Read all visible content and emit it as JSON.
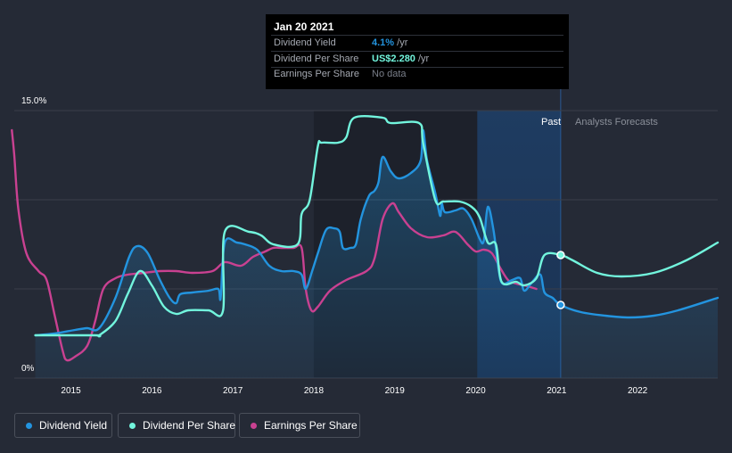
{
  "tooltip": {
    "date": "Jan 20 2021",
    "rows": [
      {
        "label": "Dividend Yield",
        "value": "4.1%",
        "unit": " /yr",
        "color": "#2394df"
      },
      {
        "label": "Dividend Per Share",
        "value": "US$2.280",
        "unit": " /yr",
        "color": "#72f5dd"
      },
      {
        "label": "Earnings Per Share",
        "value": "No data",
        "unit": "",
        "color": "#7a7f8a"
      }
    ]
  },
  "legend": [
    {
      "label": "Dividend Yield",
      "color": "#2394df"
    },
    {
      "label": "Dividend Per Share",
      "color": "#72f5dd"
    },
    {
      "label": "Earnings Per Share",
      "color": "#c94191"
    }
  ],
  "chart_data": {
    "type": "line",
    "y_tick_labels": [
      "15.0%",
      "0%"
    ],
    "ylim": [
      0,
      15
    ],
    "x_ticks": [
      2015,
      2016,
      2017,
      2018,
      2019,
      2020,
      2021,
      2022
    ],
    "xlim": [
      2014.3,
      2022.99
    ],
    "region_labels": {
      "past": "Past",
      "forecast": "Analysts Forecasts"
    },
    "past_shade_start": 2020.02,
    "forecast_start": 2021.05,
    "series": [
      {
        "name": "Dividend Yield",
        "color": "#2394df",
        "axis": "percent",
        "points": [
          [
            2014.56,
            2.4
          ],
          [
            2014.8,
            2.5
          ],
          [
            2015.05,
            2.7
          ],
          [
            2015.2,
            2.8
          ],
          [
            2015.35,
            2.8
          ],
          [
            2015.55,
            4.5
          ],
          [
            2015.72,
            6.8
          ],
          [
            2015.82,
            7.4
          ],
          [
            2015.95,
            7.0
          ],
          [
            2016.1,
            5.5
          ],
          [
            2016.22,
            4.5
          ],
          [
            2016.3,
            4.2
          ],
          [
            2016.35,
            4.7
          ],
          [
            2016.5,
            4.8
          ],
          [
            2016.7,
            4.9
          ],
          [
            2016.82,
            5.0
          ],
          [
            2016.85,
            4.5
          ],
          [
            2016.9,
            7.6
          ],
          [
            2017.05,
            7.6
          ],
          [
            2017.15,
            7.5
          ],
          [
            2017.3,
            7.2
          ],
          [
            2017.45,
            6.3
          ],
          [
            2017.6,
            6.0
          ],
          [
            2017.75,
            6.0
          ],
          [
            2017.85,
            5.8
          ],
          [
            2017.9,
            5.0
          ],
          [
            2017.98,
            6.0
          ],
          [
            2018.05,
            7.0
          ],
          [
            2018.15,
            8.3
          ],
          [
            2018.25,
            8.4
          ],
          [
            2018.32,
            8.2
          ],
          [
            2018.36,
            7.3
          ],
          [
            2018.45,
            7.3
          ],
          [
            2018.52,
            7.5
          ],
          [
            2018.58,
            8.9
          ],
          [
            2018.68,
            10.2
          ],
          [
            2018.75,
            10.5
          ],
          [
            2018.8,
            11.0
          ],
          [
            2018.85,
            12.4
          ],
          [
            2018.95,
            11.6
          ],
          [
            2019.05,
            11.2
          ],
          [
            2019.2,
            11.5
          ],
          [
            2019.32,
            12.2
          ],
          [
            2019.35,
            13.9
          ],
          [
            2019.4,
            12.2
          ],
          [
            2019.5,
            10.4
          ],
          [
            2019.56,
            9.1
          ],
          [
            2019.58,
            9.8
          ],
          [
            2019.62,
            9.3
          ],
          [
            2019.75,
            9.4
          ],
          [
            2019.85,
            9.5
          ],
          [
            2019.95,
            8.9
          ],
          [
            2020.05,
            7.8
          ],
          [
            2020.1,
            7.7
          ],
          [
            2020.15,
            9.6
          ],
          [
            2020.22,
            8.3
          ],
          [
            2020.28,
            6.2
          ],
          [
            2020.33,
            5.3
          ],
          [
            2020.45,
            5.5
          ],
          [
            2020.55,
            5.6
          ],
          [
            2020.6,
            4.9
          ],
          [
            2020.7,
            5.4
          ],
          [
            2020.8,
            5.8
          ],
          [
            2020.85,
            4.8
          ],
          [
            2020.95,
            4.5
          ],
          [
            2021.05,
            4.1
          ],
          [
            2021.3,
            3.7
          ],
          [
            2021.6,
            3.5
          ],
          [
            2021.9,
            3.4
          ],
          [
            2022.2,
            3.5
          ],
          [
            2022.5,
            3.8
          ],
          [
            2022.99,
            4.5
          ]
        ]
      },
      {
        "name": "Dividend Per Share",
        "color": "#72f5dd",
        "axis": "dps",
        "points": [
          [
            2014.56,
            2.4
          ],
          [
            2015.3,
            2.4
          ],
          [
            2015.35,
            2.4
          ],
          [
            2015.55,
            3.2
          ],
          [
            2015.7,
            4.7
          ],
          [
            2015.85,
            6.0
          ],
          [
            2016.0,
            5.2
          ],
          [
            2016.15,
            4.0
          ],
          [
            2016.3,
            3.6
          ],
          [
            2016.45,
            3.8
          ],
          [
            2016.7,
            3.8
          ],
          [
            2016.88,
            3.8
          ],
          [
            2016.9,
            8.2
          ],
          [
            2017.2,
            8.2
          ],
          [
            2017.35,
            8.0
          ],
          [
            2017.5,
            7.5
          ],
          [
            2017.8,
            7.5
          ],
          [
            2017.85,
            9.2
          ],
          [
            2017.95,
            10.0
          ],
          [
            2018.05,
            13.0
          ],
          [
            2018.1,
            13.2
          ],
          [
            2018.3,
            13.2
          ],
          [
            2018.4,
            13.5
          ],
          [
            2018.5,
            14.6
          ],
          [
            2018.85,
            14.6
          ],
          [
            2018.95,
            14.3
          ],
          [
            2019.3,
            14.3
          ],
          [
            2019.35,
            13.2
          ],
          [
            2019.5,
            10.0
          ],
          [
            2019.6,
            9.9
          ],
          [
            2019.8,
            9.9
          ],
          [
            2019.95,
            9.6
          ],
          [
            2020.05,
            9.0
          ],
          [
            2020.15,
            7.6
          ],
          [
            2020.25,
            7.5
          ],
          [
            2020.32,
            5.4
          ],
          [
            2020.5,
            5.4
          ],
          [
            2020.6,
            5.2
          ],
          [
            2020.75,
            5.6
          ],
          [
            2020.85,
            6.9
          ],
          [
            2021.05,
            6.9
          ],
          [
            2021.2,
            6.6
          ],
          [
            2021.5,
            5.9
          ],
          [
            2021.8,
            5.7
          ],
          [
            2022.2,
            5.9
          ],
          [
            2022.6,
            6.6
          ],
          [
            2022.99,
            7.6
          ]
        ]
      },
      {
        "name": "Earnings Per Share",
        "color": "#c94191",
        "axis": "eps",
        "points": [
          [
            2014.27,
            13.9
          ],
          [
            2014.3,
            12.5
          ],
          [
            2014.35,
            9.5
          ],
          [
            2014.45,
            7.0
          ],
          [
            2014.6,
            6.0
          ],
          [
            2014.7,
            5.5
          ],
          [
            2014.8,
            3.5
          ],
          [
            2014.9,
            1.5
          ],
          [
            2014.95,
            1.0
          ],
          [
            2015.05,
            1.2
          ],
          [
            2015.2,
            1.8
          ],
          [
            2015.3,
            3.2
          ],
          [
            2015.4,
            5.0
          ],
          [
            2015.55,
            5.6
          ],
          [
            2015.7,
            5.8
          ],
          [
            2015.9,
            5.9
          ],
          [
            2016.1,
            6.0
          ],
          [
            2016.3,
            6.0
          ],
          [
            2016.5,
            5.9
          ],
          [
            2016.75,
            6.0
          ],
          [
            2016.9,
            6.5
          ],
          [
            2017.1,
            6.3
          ],
          [
            2017.25,
            6.8
          ],
          [
            2017.4,
            7.1
          ],
          [
            2017.5,
            7.3
          ],
          [
            2017.6,
            7.3
          ],
          [
            2017.75,
            7.3
          ],
          [
            2017.85,
            7.3
          ],
          [
            2017.9,
            5.0
          ],
          [
            2017.97,
            3.8
          ],
          [
            2018.05,
            4.0
          ],
          [
            2018.2,
            4.9
          ],
          [
            2018.4,
            5.5
          ],
          [
            2018.65,
            6.0
          ],
          [
            2018.75,
            6.7
          ],
          [
            2018.85,
            8.9
          ],
          [
            2018.97,
            9.8
          ],
          [
            2019.05,
            9.3
          ],
          [
            2019.2,
            8.4
          ],
          [
            2019.4,
            7.9
          ],
          [
            2019.6,
            8.0
          ],
          [
            2019.75,
            8.2
          ],
          [
            2019.9,
            7.5
          ],
          [
            2020.0,
            7.1
          ],
          [
            2020.1,
            7.2
          ],
          [
            2020.2,
            7.0
          ],
          [
            2020.3,
            6.2
          ],
          [
            2020.4,
            5.5
          ],
          [
            2020.5,
            5.3
          ],
          [
            2020.6,
            5.2
          ],
          [
            2020.75,
            5.0
          ]
        ]
      }
    ]
  }
}
